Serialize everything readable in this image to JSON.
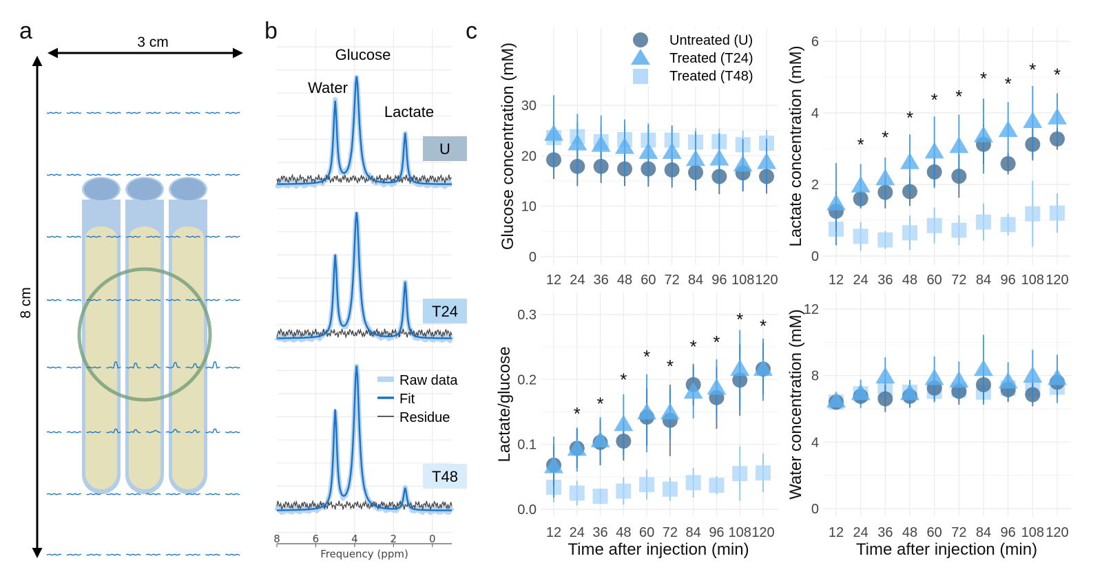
{
  "panels": {
    "a": {
      "letter": "a",
      "width_label": "3 cm",
      "height_label": "8 cm",
      "tube_count": 3,
      "grid_rows": 8,
      "grid_cols": 10,
      "colors": {
        "tube": "#b3cde8",
        "tube_cap": "#8fb0d4",
        "fill": "#e3e0ba",
        "voxel_circle": "#6d9a74",
        "spectra": "#1f77c4"
      }
    },
    "b": {
      "letter": "b",
      "peak_labels": [
        "Water",
        "Glucose",
        "Lactate"
      ],
      "group_labels": [
        {
          "label": "U",
          "color": "#a9bdd0"
        },
        {
          "label": "T24",
          "color": "#b5d9f5"
        },
        {
          "label": "T48",
          "color": "#d9ecfb"
        }
      ],
      "legend": [
        {
          "label": "Raw data",
          "color": "#b9d5f3"
        },
        {
          "label": "Fit",
          "color": "#1b73c2"
        },
        {
          "label": "Residue",
          "color": "#444444"
        }
      ],
      "xlabel": "Frequency (ppm)",
      "xticks": [
        "8",
        "6",
        "4",
        "2",
        "0"
      ],
      "xlim": [
        8,
        -1
      ],
      "peaks_ppm": {
        "water": 5.0,
        "glucose": 3.9,
        "lactate": 1.4
      },
      "peak_heights": [
        {
          "water": 0.62,
          "glucose": 0.82,
          "lactate": 0.39
        },
        {
          "water": 0.62,
          "glucose": 0.96,
          "lactate": 0.43
        },
        {
          "water": 0.75,
          "glucose": 1.1,
          "lactate": 0.17
        }
      ]
    },
    "c": {
      "letter": "c"
    }
  },
  "chart_data": [
    {
      "type": "scatter",
      "id": "glucose",
      "title": "",
      "xlabel": "",
      "ylabel": "Glucose concentration (mM)",
      "categories": [
        "12",
        "24",
        "36",
        "48",
        "60",
        "72",
        "84",
        "96",
        "108",
        "120"
      ],
      "ylim": [
        -2,
        36
      ],
      "yticks": [
        0,
        10,
        20,
        30
      ],
      "grid": true,
      "legend_position": "top-right",
      "legend": [
        {
          "label": "Untreated (U)",
          "marker": "circle",
          "color": "#4f7597"
        },
        {
          "label": "Treated (T24)",
          "marker": "triangle",
          "color": "#5aaef0"
        },
        {
          "label": "Treated (T48)",
          "marker": "square",
          "color": "#a9d4fa"
        }
      ],
      "series": [
        {
          "name": "Untreated (U)",
          "values": [
            19.2,
            17.9,
            17.9,
            17.4,
            17.4,
            17.2,
            16.7,
            15.9,
            16.6,
            15.9
          ],
          "err": [
            3.8,
            3.9,
            3.3,
            3.4,
            3.5,
            3.5,
            3.6,
            3.5,
            3.6,
            3.4
          ]
        },
        {
          "name": "Treated (T24)",
          "values": [
            24.2,
            22.3,
            22.0,
            21.6,
            20.6,
            20.6,
            19.2,
            19.3,
            18.1,
            18.6
          ],
          "err": [
            7.8,
            6.0,
            6.0,
            5.6,
            5.8,
            5.4,
            5.6,
            5.2,
            5.2,
            4.8
          ]
        },
        {
          "name": "Treated (T48)",
          "values": [
            23.6,
            23.8,
            22.8,
            23.2,
            23.1,
            23.1,
            22.7,
            22.8,
            22.2,
            22.5
          ],
          "err": [
            3.3,
            2.8,
            3.1,
            2.7,
            2.9,
            2.8,
            2.8,
            2.6,
            2.8,
            2.6
          ]
        }
      ],
      "significance": []
    },
    {
      "type": "scatter",
      "id": "lactate",
      "title": "",
      "xlabel": "",
      "ylabel": "Lactate concentration (mM)",
      "categories": [
        "12",
        "24",
        "36",
        "48",
        "60",
        "72",
        "84",
        "96",
        "108",
        "120"
      ],
      "ylim": [
        -0.3,
        6.2
      ],
      "yticks": [
        0,
        2,
        4,
        6
      ],
      "grid": true,
      "series": [
        {
          "name": "Untreated (U)",
          "values": [
            1.25,
            1.6,
            1.78,
            1.8,
            2.35,
            2.23,
            3.12,
            2.58,
            3.12,
            3.27
          ],
          "err": [
            0.55,
            0.25,
            0.45,
            0.4,
            0.4,
            0.6,
            0.55,
            0.3,
            0.45,
            0.3
          ]
        },
        {
          "name": "Treated (T24)",
          "values": [
            1.45,
            1.95,
            2.15,
            2.6,
            2.9,
            3.05,
            3.35,
            3.5,
            3.75,
            3.85
          ],
          "err": [
            1.15,
            0.62,
            0.6,
            0.8,
            1.0,
            0.9,
            1.05,
            0.8,
            1.0,
            0.7
          ]
        },
        {
          "name": "Treated (T48)",
          "values": [
            0.75,
            0.55,
            0.45,
            0.65,
            0.85,
            0.72,
            0.95,
            0.88,
            1.18,
            1.2
          ],
          "err": [
            0.45,
            0.4,
            0.25,
            0.48,
            0.5,
            0.42,
            0.52,
            0.3,
            0.92,
            0.55
          ]
        }
      ],
      "significance": [
        "",
        "*",
        "*",
        "*",
        "*",
        "*",
        "*",
        "*",
        "*",
        "*"
      ],
      "significance_y": [
        null,
        3.25,
        3.45,
        4.0,
        4.5,
        4.6,
        5.1,
        4.95,
        5.35,
        5.2
      ]
    },
    {
      "type": "scatter",
      "id": "ratio",
      "title": "",
      "xlabel": "Time after injection (min)",
      "ylabel": "Lactate/glucose",
      "categories": [
        "12",
        "24",
        "36",
        "48",
        "60",
        "72",
        "84",
        "96",
        "108",
        "120"
      ],
      "ylim": [
        -0.015,
        0.33
      ],
      "yticks": [
        0.0,
        0.1,
        0.2,
        0.3
      ],
      "ytick_labels": [
        "0.0",
        "0.1",
        "0.2",
        "0.3"
      ],
      "grid": true,
      "series": [
        {
          "name": "Untreated (U)",
          "values": [
            0.068,
            0.094,
            0.103,
            0.105,
            0.142,
            0.137,
            0.192,
            0.172,
            0.199,
            0.216
          ],
          "err": [
            0.032,
            0.03,
            0.035,
            0.03,
            0.044,
            0.055,
            0.032,
            0.048,
            0.055,
            0.04
          ]
        },
        {
          "name": "Treated (T24)",
          "values": [
            0.065,
            0.092,
            0.105,
            0.13,
            0.148,
            0.148,
            0.18,
            0.186,
            0.215,
            0.215
          ],
          "err": [
            0.047,
            0.034,
            0.037,
            0.047,
            0.06,
            0.038,
            0.04,
            0.045,
            0.061,
            0.048
          ]
        },
        {
          "name": "Treated (T48)",
          "values": [
            0.034,
            0.025,
            0.02,
            0.028,
            0.038,
            0.031,
            0.041,
            0.037,
            0.055,
            0.056
          ],
          "err": [
            0.023,
            0.019,
            0.012,
            0.021,
            0.023,
            0.018,
            0.023,
            0.014,
            0.042,
            0.03
          ]
        }
      ],
      "significance": [
        "",
        "*",
        "*",
        "*",
        "*",
        "*",
        "*",
        "*",
        "*",
        "*"
      ],
      "significance_y": [
        null,
        0.155,
        0.17,
        0.207,
        0.243,
        0.228,
        0.258,
        0.265,
        0.3,
        0.29
      ]
    },
    {
      "type": "scatter",
      "id": "water",
      "title": "",
      "xlabel": "Time after injection (min)",
      "ylabel": "Water concentration (mM)",
      "categories": [
        "12",
        "24",
        "36",
        "48",
        "60",
        "72",
        "84",
        "96",
        "108",
        "120"
      ],
      "ylim": [
        -0.7,
        13.2
      ],
      "yticks": [
        0,
        4,
        8,
        12
      ],
      "grid": true,
      "series": [
        {
          "name": "Untreated (U)",
          "values": [
            6.4,
            6.75,
            6.6,
            6.75,
            7.25,
            7.05,
            7.45,
            7.15,
            6.85,
            7.6
          ],
          "err": [
            0.2,
            0.5,
            0.8,
            0.6,
            0.8,
            0.8,
            0.9,
            0.7,
            0.7,
            0.8
          ]
        },
        {
          "name": "Treated (T24)",
          "values": [
            6.45,
            6.9,
            7.9,
            6.9,
            7.8,
            7.65,
            8.35,
            7.6,
            7.95,
            7.8
          ],
          "err": [
            0.25,
            0.85,
            1.2,
            0.85,
            1.35,
            1.2,
            2.1,
            1.2,
            1.6,
            1.45
          ]
        },
        {
          "name": "Treated (T48)",
          "values": [
            6.4,
            6.9,
            7.15,
            7.0,
            7.05,
            7.15,
            7.0,
            7.25,
            7.2,
            7.3
          ],
          "err": [
            0.25,
            0.5,
            0.7,
            0.6,
            0.7,
            0.7,
            0.7,
            0.6,
            0.6,
            0.7
          ]
        }
      ],
      "significance": []
    }
  ]
}
